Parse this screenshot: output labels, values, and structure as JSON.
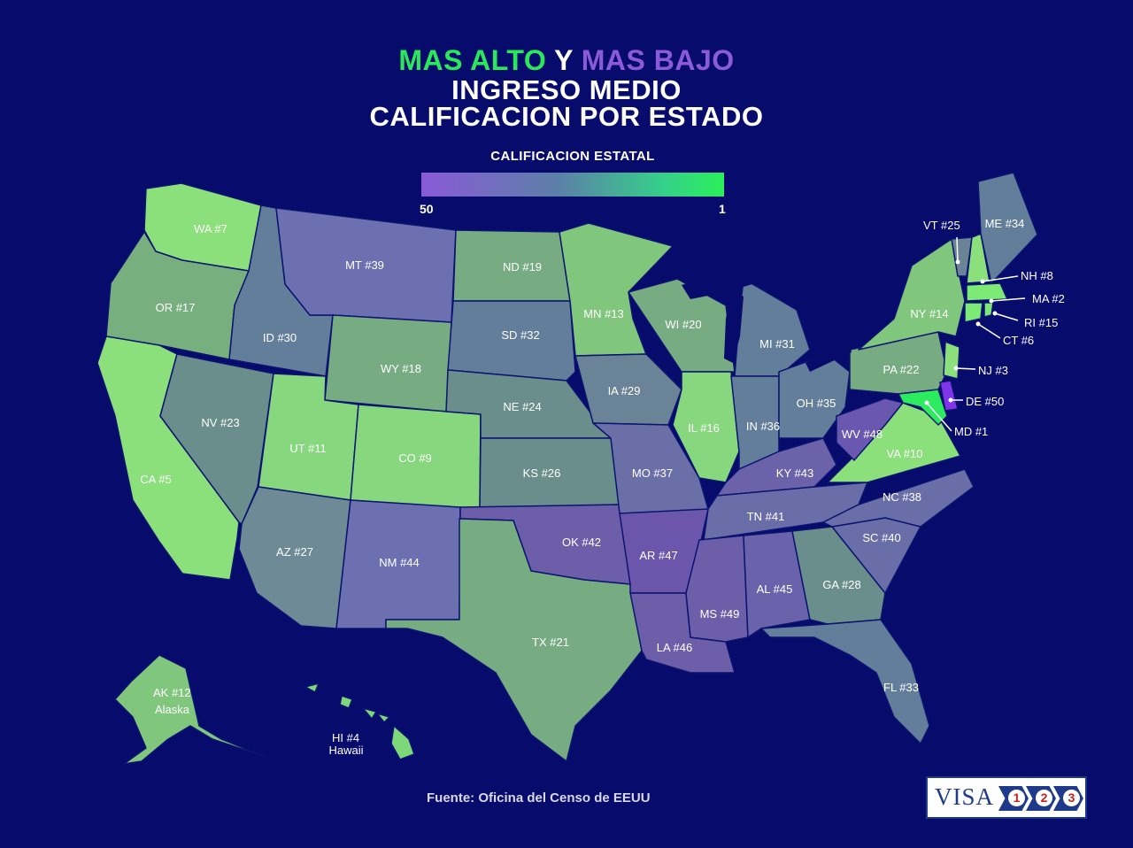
{
  "title": {
    "highest": "MAS ALTO",
    "and": "Y",
    "lowest": "MAS BAJO",
    "line2": "INGRESO MEDIO",
    "line3": "CALIFICACION POR ESTADO"
  },
  "legend": {
    "title": "CALIFICACION ESTATAL",
    "min_label": "50",
    "max_label": "1",
    "low_color": "#8A5AD8",
    "high_color": "#2AF05A"
  },
  "states": {
    "WA": "WA #7",
    "OR": "OR #17",
    "CA": "CA #5",
    "ID": "ID #30",
    "NV": "NV #23",
    "MT": "MT #39",
    "WY": "WY #18",
    "UT": "UT #11",
    "AZ": "AZ #27",
    "CO": "CO #9",
    "NM": "NM #44",
    "ND": "ND #19",
    "SD": "SD #32",
    "NE": "NE #24",
    "KS": "KS #26",
    "OK": "OK #42",
    "TX": "TX #21",
    "MN": "MN #13",
    "IA": "IA #29",
    "MO": "MO #37",
    "AR": "AR #47",
    "LA": "LA #46",
    "WI": "WI #20",
    "IL": "IL #16",
    "MI": "MI #31",
    "IN": "IN #36",
    "OH": "OH #35",
    "KY": "KY #43",
    "TN": "TN #41",
    "MS": "MS #49",
    "AL": "AL #45",
    "GA": "GA #28",
    "FL": "FL #33",
    "SC": "SC #40",
    "NC": "NC #38",
    "VA": "VA #10",
    "WV": "WV #48",
    "PA": "PA #22",
    "NY": "NY #14",
    "ME": "ME #34",
    "VT": "VT #25",
    "NH": "NH #8",
    "MA": "MA #2",
    "RI": "RI #15",
    "CT": "CT #6",
    "NJ": "NJ #3",
    "DE": "DE #50",
    "MD": "MD #1",
    "AK": "AK #12",
    "HI": "HI #4"
  },
  "state_names": {
    "AK": "Alaska",
    "HI": "Hawaii"
  },
  "source": "Fuente: Oficina del Censo de EEUU",
  "logo": {
    "text": "VISA",
    "steps": [
      "1",
      "2",
      "3"
    ]
  }
}
